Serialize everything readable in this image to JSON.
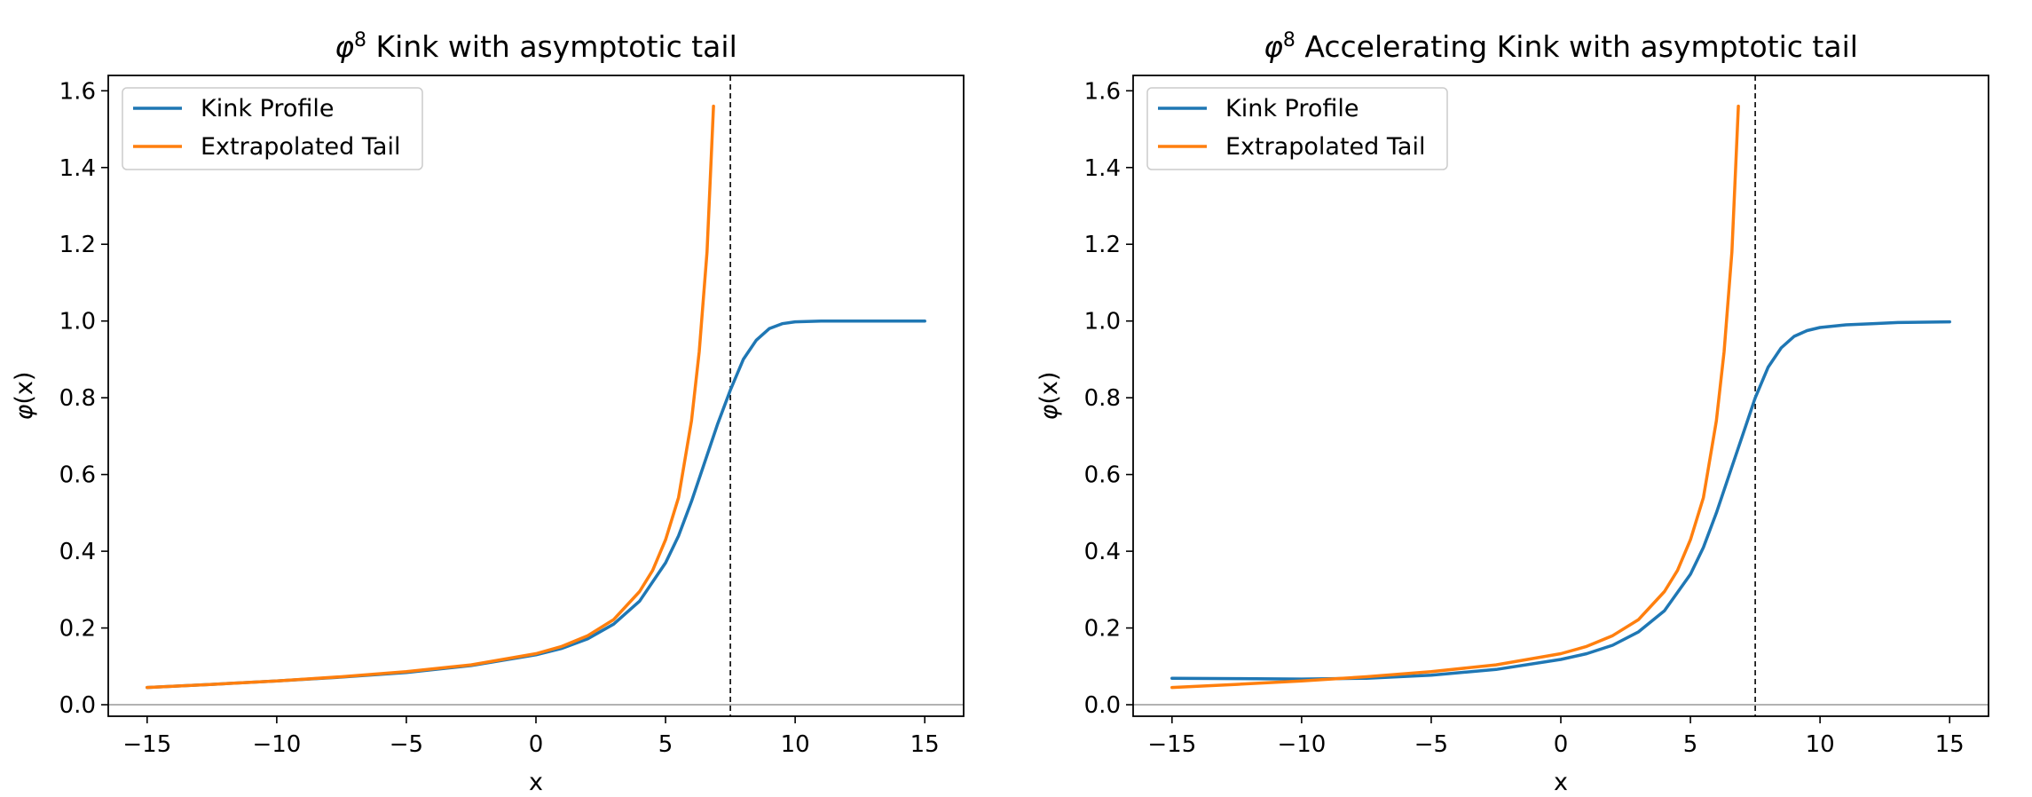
{
  "figure": {
    "panels": [
      {
        "title_symbol": "φ",
        "title_sup": "8",
        "title_rest": " Kink with asymptotic tail",
        "xlabel": "x",
        "ylabel_symbol": "φ",
        "ylabel_rest": "(x)",
        "legend": [
          "Kink Profile",
          "Extrapolated Tail"
        ]
      },
      {
        "title_symbol": "φ",
        "title_sup": "8",
        "title_rest": " Accelerating Kink with asymptotic tail",
        "xlabel": "x",
        "ylabel_symbol": "φ",
        "ylabel_rest": "(x)",
        "legend": [
          "Kink Profile",
          "Extrapolated Tail"
        ]
      }
    ]
  },
  "chart_data": [
    {
      "type": "line",
      "title": "φ^8 Kink with asymptotic tail",
      "xlabel": "x",
      "ylabel": "φ(x)",
      "xlim": [
        -16.5,
        16.5
      ],
      "ylim": [
        -0.03,
        1.64
      ],
      "xticks": [
        -15,
        -10,
        -5,
        0,
        5,
        10,
        15
      ],
      "xtick_labels": [
        "−15",
        "−10",
        "−5",
        "0",
        "5",
        "10",
        "15"
      ],
      "yticks": [
        0.0,
        0.2,
        0.4,
        0.6,
        0.8,
        1.0,
        1.2,
        1.4,
        1.6
      ],
      "ytick_labels": [
        "0.0",
        "0.2",
        "0.4",
        "0.6",
        "0.8",
        "1.0",
        "1.2",
        "1.4",
        "1.6"
      ],
      "legend_position": "top-left",
      "grid": false,
      "hline": 0,
      "vline": 7.5,
      "series": [
        {
          "name": "Kink Profile",
          "color": "#1f77b4",
          "x": [
            -15,
            -12.5,
            -10,
            -7.5,
            -5,
            -2.5,
            0,
            1,
            2,
            3,
            4,
            5,
            5.5,
            6,
            6.5,
            7,
            7.5,
            8,
            8.5,
            9,
            9.5,
            10,
            11,
            12,
            13,
            15
          ],
          "y": [
            0.045,
            0.053,
            0.062,
            0.072,
            0.084,
            0.102,
            0.13,
            0.147,
            0.172,
            0.21,
            0.27,
            0.37,
            0.44,
            0.53,
            0.63,
            0.73,
            0.82,
            0.9,
            0.95,
            0.98,
            0.993,
            0.998,
            1.0,
            1.0,
            1.0,
            1.0
          ]
        },
        {
          "name": "Extrapolated Tail",
          "color": "#ff7f0e",
          "x": [
            -15,
            -12.5,
            -10,
            -7.5,
            -5,
            -2.5,
            0,
            1,
            2,
            3,
            4,
            4.5,
            5,
            5.5,
            6,
            6.3,
            6.6,
            6.85
          ],
          "y": [
            0.045,
            0.053,
            0.062,
            0.073,
            0.086,
            0.104,
            0.133,
            0.152,
            0.18,
            0.222,
            0.295,
            0.35,
            0.43,
            0.54,
            0.74,
            0.92,
            1.18,
            1.56
          ]
        }
      ]
    },
    {
      "type": "line",
      "title": "φ^8 Accelerating Kink with asymptotic tail",
      "xlabel": "x",
      "ylabel": "φ(x)",
      "xlim": [
        -16.5,
        16.5
      ],
      "ylim": [
        -0.03,
        1.64
      ],
      "xticks": [
        -15,
        -10,
        -5,
        0,
        5,
        10,
        15
      ],
      "xtick_labels": [
        "−15",
        "−10",
        "−5",
        "0",
        "5",
        "10",
        "15"
      ],
      "yticks": [
        0.0,
        0.2,
        0.4,
        0.6,
        0.8,
        1.0,
        1.2,
        1.4,
        1.6
      ],
      "ytick_labels": [
        "0.0",
        "0.2",
        "0.4",
        "0.6",
        "0.8",
        "1.0",
        "1.2",
        "1.4",
        "1.6"
      ],
      "legend_position": "top-left",
      "grid": false,
      "hline": 0,
      "vline": 7.5,
      "series": [
        {
          "name": "Kink Profile",
          "color": "#1f77b4",
          "x": [
            -15,
            -12.5,
            -10,
            -7.5,
            -5,
            -2.5,
            0,
            1,
            2,
            3,
            4,
            5,
            5.5,
            6,
            6.5,
            7,
            7.5,
            8,
            8.5,
            9,
            9.5,
            10,
            11,
            12,
            13,
            15
          ],
          "y": [
            0.069,
            0.068,
            0.067,
            0.069,
            0.077,
            0.092,
            0.118,
            0.133,
            0.155,
            0.19,
            0.245,
            0.34,
            0.41,
            0.5,
            0.6,
            0.7,
            0.8,
            0.88,
            0.93,
            0.96,
            0.975,
            0.983,
            0.99,
            0.993,
            0.996,
            0.998
          ]
        },
        {
          "name": "Extrapolated Tail",
          "color": "#ff7f0e",
          "x": [
            -15,
            -12.5,
            -10,
            -7.5,
            -5,
            -2.5,
            0,
            1,
            2,
            3,
            4,
            4.5,
            5,
            5.5,
            6,
            6.3,
            6.6,
            6.85
          ],
          "y": [
            0.045,
            0.053,
            0.062,
            0.073,
            0.086,
            0.104,
            0.133,
            0.152,
            0.18,
            0.222,
            0.295,
            0.35,
            0.43,
            0.54,
            0.74,
            0.92,
            1.18,
            1.56
          ]
        }
      ]
    }
  ]
}
